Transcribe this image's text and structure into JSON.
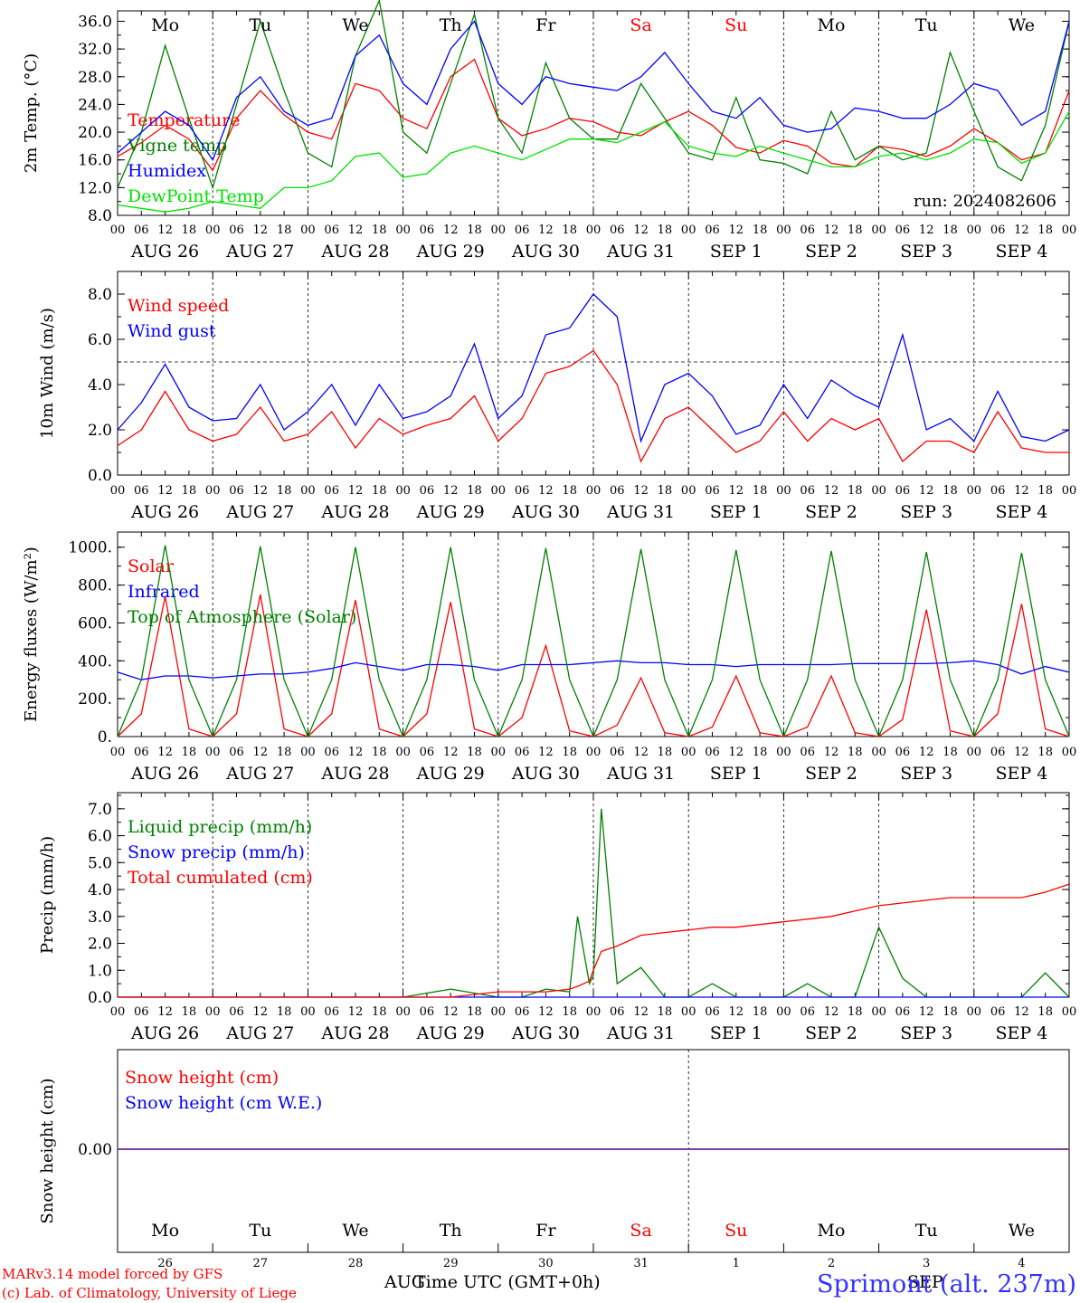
{
  "chart_data": [
    {
      "type": "line",
      "ylabel": "2m Temp. (°C)",
      "ylim": [
        8,
        37.5
      ],
      "yticks": [
        "8.0",
        "12.0",
        "16.0",
        "20.0",
        "24.0",
        "28.0",
        "32.0",
        "36.0"
      ],
      "ytick_values": [
        8,
        12,
        16,
        20,
        24,
        28,
        32,
        36
      ],
      "run_label": "run: 2024082606",
      "x_hours": [
        0,
        6,
        12,
        18,
        24,
        30,
        36,
        42,
        48,
        54,
        60,
        66,
        72,
        78,
        84,
        90,
        96,
        102,
        108,
        114,
        120,
        126,
        132,
        138,
        144,
        150,
        156,
        162,
        168,
        174,
        180,
        186,
        192,
        198,
        204,
        210,
        216,
        222,
        228,
        234,
        240
      ],
      "series": [
        {
          "name": "Temperature",
          "color": "#ff0000",
          "values": [
            16.5,
            18.5,
            21,
            19,
            14.5,
            22,
            26,
            22.5,
            20,
            19,
            27,
            26,
            22,
            20.5,
            28,
            30.5,
            22,
            19.5,
            20.5,
            22,
            21.5,
            20,
            19.5,
            21.5,
            23,
            21,
            17.8,
            17,
            18.8,
            18,
            15.5,
            15,
            18,
            17.5,
            16.5,
            18,
            20.5,
            18.5,
            16,
            17,
            26
          ]
        },
        {
          "name": "Vigne temp",
          "color": "#008000",
          "values": [
            12,
            20,
            32.5,
            22,
            12,
            24,
            36,
            26,
            17,
            15,
            31,
            39,
            20,
            17,
            27,
            37,
            22,
            17,
            30,
            22,
            19,
            19,
            27,
            22,
            17,
            16,
            25,
            16,
            15.5,
            14,
            23,
            16,
            18,
            16,
            17,
            31.5,
            23,
            15,
            13,
            21,
            36
          ]
        },
        {
          "name": "Humidex",
          "color": "#0000ff",
          "values": [
            17,
            20,
            23,
            21,
            16,
            25,
            28,
            23,
            21,
            22,
            31,
            34,
            27,
            24,
            32,
            36,
            27,
            24,
            28,
            27,
            26.5,
            26,
            28,
            31.5,
            27,
            23,
            22,
            25,
            21,
            20,
            20.5,
            23.5,
            23,
            22,
            22,
            24,
            27,
            26,
            21,
            23,
            36
          ]
        },
        {
          "name": "DewPoint Temp",
          "color": "#00e000",
          "values": [
            9.5,
            9,
            8.5,
            9,
            10,
            9.5,
            9,
            12,
            12,
            13,
            16.5,
            17,
            13.5,
            14,
            17,
            18,
            17,
            16,
            17.5,
            19,
            19,
            18.5,
            20,
            21.5,
            18,
            17,
            16.5,
            18,
            17,
            16,
            15,
            15,
            16.5,
            17,
            16,
            17,
            19,
            18.5,
            15.5,
            17,
            23
          ]
        }
      ]
    },
    {
      "type": "line",
      "ylabel": "10m Wind (m/s)",
      "ylim": [
        0,
        9
      ],
      "yticks": [
        "0.0",
        "2.0",
        "4.0",
        "6.0",
        "8.0"
      ],
      "ytick_values": [
        0,
        2,
        4,
        6,
        8
      ],
      "reference_line": 5,
      "x_hours": [
        0,
        6,
        12,
        18,
        24,
        30,
        36,
        42,
        48,
        54,
        60,
        66,
        72,
        78,
        84,
        90,
        96,
        102,
        108,
        114,
        120,
        126,
        132,
        138,
        144,
        150,
        156,
        162,
        168,
        174,
        180,
        186,
        192,
        198,
        204,
        210,
        216,
        222,
        228,
        234,
        240
      ],
      "series": [
        {
          "name": "Wind speed",
          "color": "#ff0000",
          "values": [
            1.3,
            2,
            3.7,
            2,
            1.5,
            1.8,
            3,
            1.5,
            1.8,
            2.8,
            1.2,
            2.5,
            1.8,
            2.2,
            2.5,
            3.5,
            1.5,
            2.5,
            4.5,
            4.8,
            5.5,
            4,
            0.6,
            2.5,
            3,
            2,
            1,
            1.5,
            2.8,
            1.5,
            2.5,
            2,
            2.5,
            0.6,
            1.5,
            1.5,
            1,
            2.8,
            1.2,
            1,
            1
          ]
        },
        {
          "name": "Wind gust",
          "color": "#0000ff",
          "values": [
            2,
            3.2,
            4.9,
            3,
            2.4,
            2.5,
            4,
            2,
            2.8,
            4,
            2.2,
            4,
            2.5,
            2.8,
            3.5,
            5.8,
            2.5,
            3.5,
            6.2,
            6.5,
            8,
            7,
            1.5,
            4,
            4.5,
            3.5,
            1.8,
            2.2,
            4,
            2.5,
            4.2,
            3.5,
            3,
            6.2,
            2,
            2.5,
            1.5,
            3.7,
            1.7,
            1.5,
            2
          ]
        }
      ]
    },
    {
      "type": "line",
      "ylabel": "Energy fluxes (W/m²)",
      "ylim": [
        0,
        1080
      ],
      "yticks": [
        "0.",
        "200.",
        "400.",
        "600.",
        "800.",
        "1000."
      ],
      "ytick_values": [
        0,
        200,
        400,
        600,
        800,
        1000
      ],
      "x_hours": [
        0,
        6,
        12,
        18,
        24,
        30,
        36,
        42,
        48,
        54,
        60,
        66,
        72,
        78,
        84,
        90,
        96,
        102,
        108,
        114,
        120,
        126,
        132,
        138,
        144,
        150,
        156,
        162,
        168,
        174,
        180,
        186,
        192,
        198,
        204,
        210,
        216,
        222,
        228,
        234,
        240
      ],
      "series": [
        {
          "name": "Solar",
          "color": "#ff0000",
          "values": [
            0,
            120,
            740,
            40,
            0,
            120,
            750,
            40,
            0,
            120,
            720,
            40,
            0,
            120,
            710,
            40,
            0,
            100,
            480,
            30,
            0,
            60,
            310,
            20,
            0,
            50,
            320,
            20,
            0,
            50,
            320,
            20,
            0,
            90,
            670,
            30,
            0,
            120,
            700,
            40,
            0
          ]
        },
        {
          "name": "Infrared",
          "color": "#0000ff",
          "values": [
            340,
            300,
            320,
            320,
            310,
            320,
            330,
            330,
            340,
            360,
            390,
            370,
            350,
            380,
            380,
            370,
            350,
            380,
            380,
            380,
            390,
            400,
            390,
            390,
            380,
            380,
            370,
            380,
            380,
            380,
            380,
            385,
            385,
            385,
            385,
            390,
            400,
            380,
            330,
            370,
            340
          ]
        },
        {
          "name": "Top of Atmosphere (Solar)",
          "color": "#008000",
          "values": [
            0,
            300,
            1010,
            300,
            0,
            300,
            1005,
            300,
            0,
            300,
            1000,
            300,
            0,
            300,
            1000,
            300,
            0,
            300,
            995,
            300,
            0,
            300,
            990,
            300,
            0,
            300,
            985,
            300,
            0,
            300,
            980,
            300,
            0,
            300,
            975,
            300,
            0,
            300,
            970,
            300,
            0
          ]
        }
      ]
    },
    {
      "type": "line",
      "ylabel": "Precip (mm/h)",
      "ylim": [
        0,
        7.6
      ],
      "yticks": [
        "0.0",
        "1.0",
        "2.0",
        "3.0",
        "4.0",
        "5.0",
        "6.0",
        "7.0"
      ],
      "ytick_values": [
        0,
        1,
        2,
        3,
        4,
        5,
        6,
        7
      ],
      "x_hours": [
        0,
        12,
        24,
        36,
        48,
        60,
        72,
        84,
        96,
        102,
        108,
        114,
        116,
        119,
        120,
        122,
        126,
        132,
        138,
        144,
        150,
        156,
        162,
        168,
        174,
        180,
        186,
        192,
        198,
        204,
        210,
        216,
        222,
        228,
        234,
        240
      ],
      "series": [
        {
          "name": "Liquid precip (mm/h)",
          "color": "#008000",
          "values": [
            0,
            0,
            0,
            0,
            0,
            0,
            0,
            0.3,
            0,
            0,
            0.3,
            0.2,
            3.0,
            0.5,
            0.8,
            7.0,
            0.5,
            1.1,
            0,
            0,
            0.5,
            0,
            0,
            0,
            0.5,
            0,
            0,
            2.6,
            0.7,
            0,
            0,
            0,
            0,
            0,
            0.9,
            0
          ]
        },
        {
          "name": "Snow precip (mm/h)",
          "color": "#0000ff",
          "values": [
            0,
            0,
            0,
            0,
            0,
            0,
            0,
            0,
            0,
            0,
            0,
            0,
            0,
            0,
            0,
            0,
            0,
            0,
            0,
            0,
            0,
            0,
            0,
            0,
            0,
            0,
            0,
            0,
            0,
            0,
            0,
            0,
            0,
            0,
            0,
            0
          ]
        },
        {
          "name": "Total cumulated (cm)",
          "color": "#ff0000",
          "values": [
            0,
            0,
            0,
            0,
            0,
            0,
            0,
            0,
            0.2,
            0.2,
            0.2,
            0.3,
            0.4,
            0.6,
            1.0,
            1.7,
            1.9,
            2.3,
            2.4,
            2.5,
            2.6,
            2.6,
            2.7,
            2.8,
            2.9,
            3.0,
            3.2,
            3.4,
            3.5,
            3.6,
            3.7,
            3.7,
            3.7,
            3.7,
            3.9,
            4.2
          ]
        }
      ]
    },
    {
      "type": "line",
      "ylabel": "Snow height (cm)",
      "yticks": [
        "0.00"
      ],
      "x_hours": [
        0,
        240
      ],
      "series": [
        {
          "name": "Snow height (cm)",
          "color": "#ff0000",
          "values": [
            0,
            0
          ]
        },
        {
          "name": "Snow height (cm W.E.)",
          "color": "#0000ff",
          "values": [
            0,
            0
          ]
        }
      ]
    }
  ],
  "axis": {
    "hour_labels": [
      "00",
      "06",
      "12",
      "18"
    ],
    "final_hour_label": "00",
    "date_labels": [
      "AUG 26",
      "AUG 27",
      "AUG 28",
      "AUG 29",
      "AUG 30",
      "AUG 31",
      "SEP  1",
      "SEP  2",
      "SEP  3",
      "SEP  4"
    ],
    "weekdays": [
      "Mo",
      "Tu",
      "We",
      "Th",
      "Fr",
      "Sa",
      "Su",
      "Mo",
      "Tu",
      "We"
    ],
    "weekend_color": "#ff0000",
    "weekend_indices": [
      5,
      6
    ],
    "day_numbers": [
      "26",
      "27",
      "28",
      "29",
      "30",
      "31",
      "1",
      "2",
      "3",
      "4"
    ],
    "month_left": "AUG",
    "month_right": "SEP",
    "xlabel": "Time UTC (GMT+0h)"
  },
  "footer": {
    "model": "MARv3.14 model forced by GFS",
    "credit": "(c) Lab. of Climatology, University of Liege",
    "station": "Sprimont (alt. 237m)"
  },
  "colors": {
    "station": "#3333ff",
    "footer": "#ff0000",
    "snow_zero_line": "#7b3fa0"
  }
}
